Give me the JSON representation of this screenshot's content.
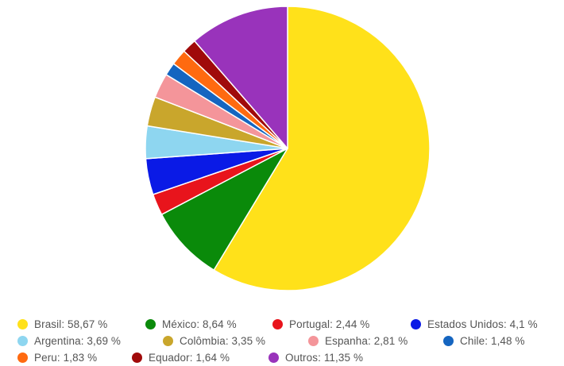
{
  "chart_data": {
    "type": "pie",
    "slices": [
      {
        "label": "Brasil: 58,67 %",
        "name": "Brasil",
        "value": 58.67,
        "color": "#FFE11A"
      },
      {
        "label": "México: 8,64 %",
        "name": "México",
        "value": 8.64,
        "color": "#0A8A0A"
      },
      {
        "label": "Portugal: 2,44 %",
        "name": "Portugal",
        "value": 2.44,
        "color": "#E8141C"
      },
      {
        "label": "Estados Unidos: 4,1 %",
        "name": "Estados Unidos",
        "value": 4.1,
        "color": "#0A1AE6"
      },
      {
        "label": "Argentina: 3,69 %",
        "name": "Argentina",
        "value": 3.69,
        "color": "#8ED6F0"
      },
      {
        "label": "Colômbia: 3,35 %",
        "name": "Colômbia",
        "value": 3.35,
        "color": "#C9A62C"
      },
      {
        "label": "Espanha: 2,81 %",
        "name": "Espanha",
        "value": 2.81,
        "color": "#F4959A"
      },
      {
        "label": "Chile: 1,48 %",
        "name": "Chile",
        "value": 1.48,
        "color": "#1565C0"
      },
      {
        "label": "Peru: 1,83 %",
        "name": "Peru",
        "value": 1.83,
        "color": "#FF6A10"
      },
      {
        "label": "Equador: 1,64 %",
        "name": "Equador",
        "value": 1.64,
        "color": "#A00A0A"
      },
      {
        "label": "Outros: 11,35 %",
        "name": "Outros",
        "value": 11.35,
        "color": "#9933BB"
      }
    ],
    "slice_order": [
      "Brasil",
      "México",
      "Portugal",
      "Estados Unidos",
      "Argentina",
      "Colômbia",
      "Espanha",
      "Chile",
      "Peru",
      "Equador",
      "Outros"
    ],
    "start_angle": "top",
    "direction": "clockwise",
    "legend_position": "bottom",
    "legend_rows": [
      [
        "Brasil",
        "México",
        "Portugal",
        "Estados Unidos"
      ],
      [
        "Argentina",
        "Colômbia",
        "Espanha",
        "Chile"
      ],
      [
        "Peru",
        "Equador",
        "Outros"
      ]
    ]
  }
}
